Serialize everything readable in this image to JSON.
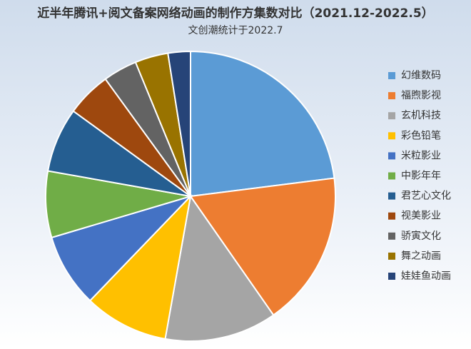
{
  "chart_data": {
    "type": "pie",
    "title": "近半年腾讯+阅文备案网络动画的制作方集数对比（2021.12-2022.5）",
    "subtitle": "文创潮统计于2022.7",
    "categories": [
      "幻维数码",
      "福煦影视",
      "玄机科技",
      "彩色铅笔",
      "米粒影业",
      "中影年年",
      "君艺心文化",
      "视美影业",
      "骄寅文化",
      "舞之动画",
      "娃娃鱼动画"
    ],
    "values": [
      23,
      17.3,
      12.5,
      9.4,
      8.2,
      7.4,
      7.2,
      5,
      3.8,
      3.7,
      2.5
    ],
    "colors": [
      "#5b9bd5",
      "#ed7d31",
      "#a5a5a5",
      "#ffc000",
      "#4472c4",
      "#70ad47",
      "#255e91",
      "#9e480e",
      "#636363",
      "#997300",
      "#264478"
    ],
    "legend": "right"
  }
}
